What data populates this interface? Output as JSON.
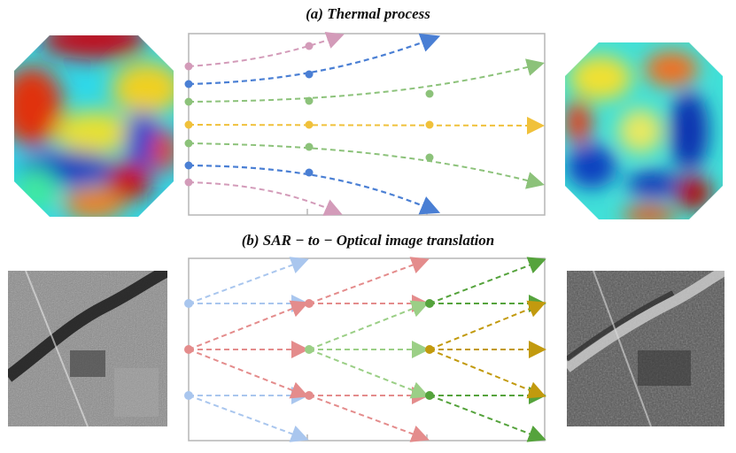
{
  "panels": {
    "a": {
      "title": "(a) Thermal process"
    },
    "b": {
      "title": "(b) SAR − to − Optical image translation"
    }
  },
  "images": {
    "a_left": "thermal-heatmap-initial",
    "a_right": "thermal-heatmap-final",
    "b_left": "sar-image",
    "b_right": "optical-image"
  },
  "colors": {
    "pink": "#d39bb9",
    "blue": "#4a7fd4",
    "green": "#8cc27a",
    "yellow": "#f0c13b",
    "light_blue": "#a9c6ee",
    "red": "#e48c8c",
    "light_green": "#9bcf86",
    "dark_green": "#55a33c",
    "olive": "#c29a0e",
    "frame": "#b5b5b5"
  }
}
